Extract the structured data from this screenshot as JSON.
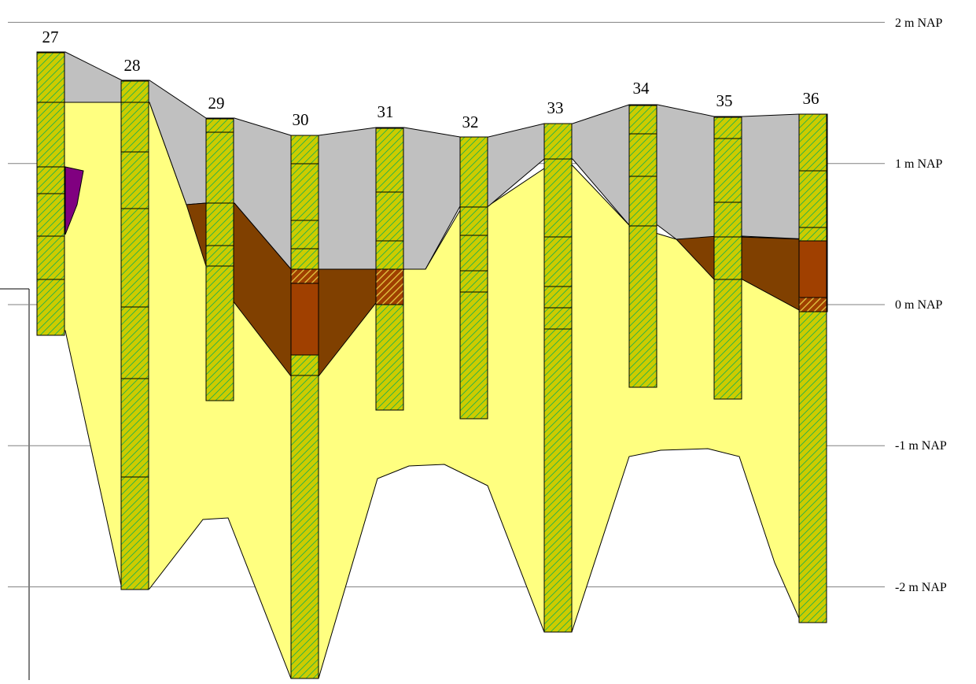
{
  "title": "",
  "levels": [
    {
      "value": 2,
      "label": "2  m NAP"
    },
    {
      "value": 1,
      "label": "1  m NAP"
    },
    {
      "value": 0,
      "label": "0  m NAP"
    },
    {
      "value": -1,
      "label": "-1  m NAP"
    },
    {
      "value": -2,
      "label": "-2  m NAP"
    }
  ],
  "boreholes": [
    {
      "id": "27",
      "top": 1.78,
      "bottom": -0.22
    },
    {
      "id": "28",
      "top": 1.58,
      "bottom": -2.02
    },
    {
      "id": "29",
      "top": 1.32,
      "bottom": -0.68
    },
    {
      "id": "30",
      "top": 1.2,
      "bottom": -2.65
    },
    {
      "id": "31",
      "top": 1.25,
      "bottom": -0.75
    },
    {
      "id": "32",
      "top": 1.19,
      "bottom": -0.81
    },
    {
      "id": "33",
      "top": 1.28,
      "bottom": -2.32
    },
    {
      "id": "34",
      "top": 1.42,
      "bottom": -0.58
    },
    {
      "id": "35",
      "top": 1.33,
      "bottom": -0.67
    },
    {
      "id": "36",
      "top": 1.35,
      "bottom": -2.25
    }
  ],
  "colors": {
    "sand": "#ffff80",
    "clay": "#c0c0c0",
    "peat": "#804000",
    "humic": "#a04000",
    "organic": "#800080",
    "column": "#cccc00",
    "hatch": "#00b050",
    "grid": "#808080"
  }
}
